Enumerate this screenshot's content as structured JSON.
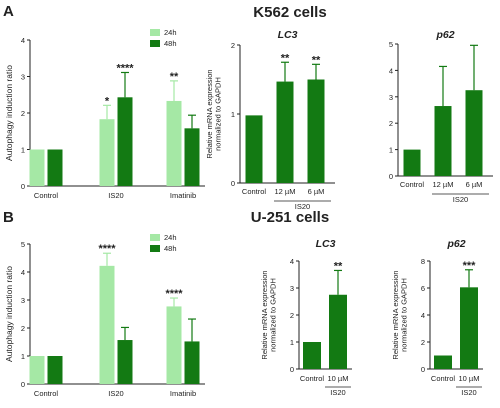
{
  "panels": [
    {
      "letter": "A",
      "heading": "K562 cells"
    },
    {
      "letter": "B",
      "heading": "U-251 cells"
    }
  ],
  "colors": {
    "light": "#a5e8a5",
    "dark": "#137a13",
    "axis": "#222222",
    "text": "#222222"
  },
  "chart_data": [
    {
      "id": "a1",
      "type": "bar",
      "ylabel": "Autophagy induction ratio",
      "ylim": [
        0,
        4
      ],
      "ticks": [
        0,
        1,
        2,
        3,
        4
      ],
      "categories": [
        "Control",
        "IS20",
        "Imatinib"
      ],
      "legend": [
        "24h",
        "48h"
      ],
      "series": [
        {
          "name": "24h",
          "values": [
            1.0,
            1.83,
            2.33
          ],
          "errors": [
            0.0,
            0.38,
            0.55
          ]
        },
        {
          "name": "48h",
          "values": [
            1.0,
            2.43,
            1.58
          ],
          "errors": [
            0.0,
            0.68,
            0.36
          ]
        }
      ],
      "annotations": [
        {
          "cat": 1,
          "text": "*",
          "series": 0
        },
        {
          "cat": 1,
          "text": "****",
          "series": 1
        },
        {
          "cat": 2,
          "text": "**",
          "series": 0
        }
      ]
    },
    {
      "id": "a2",
      "type": "bar",
      "title": "LC3",
      "ylabel": "Relative mRNA expression normalized to GAPDH",
      "ylim": [
        0,
        2
      ],
      "ticks": [
        0,
        1,
        2
      ],
      "categories": [
        "Control",
        "12 µM",
        "6 µM"
      ],
      "group_label": "IS20",
      "values": [
        0.98,
        1.47,
        1.5
      ],
      "errors": [
        0.0,
        0.28,
        0.22
      ],
      "annotations": [
        {
          "cat": 1,
          "text": "**"
        },
        {
          "cat": 2,
          "text": "**"
        }
      ]
    },
    {
      "id": "a3",
      "type": "bar",
      "title": "p62",
      "ylim": [
        0,
        5
      ],
      "ticks": [
        0,
        1,
        2,
        3,
        4,
        5
      ],
      "categories": [
        "Control",
        "12 µM",
        "6 µM"
      ],
      "group_label": "IS20",
      "values": [
        1.0,
        2.65,
        3.25
      ],
      "errors": [
        0.0,
        1.5,
        1.7
      ],
      "annotations": []
    },
    {
      "id": "b1",
      "type": "bar",
      "ylabel": "Autophagy induction ratio",
      "ylim": [
        0,
        5
      ],
      "ticks": [
        0,
        1,
        2,
        3,
        4,
        5
      ],
      "categories": [
        "Control",
        "IS20",
        "Imatinib"
      ],
      "legend": [
        "24h",
        "48h"
      ],
      "series": [
        {
          "name": "24h",
          "values": [
            1.0,
            4.22,
            2.77
          ],
          "errors": [
            0.0,
            0.45,
            0.3
          ]
        },
        {
          "name": "48h",
          "values": [
            1.0,
            1.57,
            1.52
          ],
          "errors": [
            0.0,
            0.45,
            0.8
          ]
        }
      ],
      "annotations": [
        {
          "cat": 1,
          "text": "****",
          "series": 0
        },
        {
          "cat": 2,
          "text": "****",
          "series": 0
        }
      ]
    },
    {
      "id": "b2",
      "type": "bar",
      "title": "LC3",
      "ylabel": "Relative mRNA expression normalized to GAPDH",
      "ylim": [
        0,
        4
      ],
      "ticks": [
        0,
        1,
        2,
        3,
        4
      ],
      "categories": [
        "Control",
        "10 µM"
      ],
      "group_label": "IS20",
      "values": [
        1.0,
        2.75
      ],
      "errors": [
        0.0,
        0.9
      ],
      "annotations": [
        {
          "cat": 1,
          "text": "**"
        }
      ]
    },
    {
      "id": "b3",
      "type": "bar",
      "title": "p62",
      "ylabel": "Relative mRNA expression normalized to GAPDH",
      "ylim": [
        0,
        8
      ],
      "ticks": [
        0,
        2,
        4,
        6,
        8
      ],
      "categories": [
        "Control",
        "10 µM"
      ],
      "group_label": "IS20",
      "values": [
        1.0,
        6.05
      ],
      "errors": [
        0.0,
        1.3
      ],
      "annotations": [
        {
          "cat": 1,
          "text": "***"
        }
      ]
    }
  ]
}
